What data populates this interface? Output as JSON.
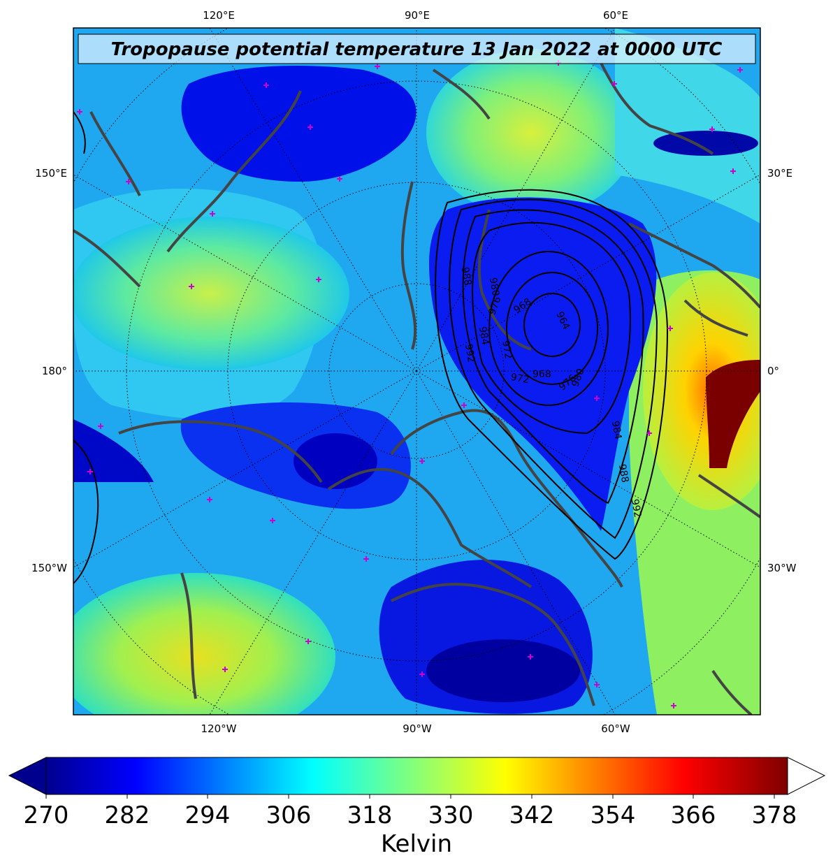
{
  "title": "Tropopause potential temperature 13 Jan 2022 at 0000 UTC",
  "top_longitude_labels": [
    "120°E",
    "90°E",
    "60°E"
  ],
  "bottom_longitude_labels": [
    "120°W",
    "90°W",
    "60°W"
  ],
  "left_labels": [
    "150°E",
    "180°",
    "150°W"
  ],
  "right_labels": [
    "30°E",
    "0°",
    "30°W"
  ],
  "isobar_labels": [
    "988",
    "980",
    "976",
    "984",
    "992",
    "972",
    "968",
    "964",
    "968",
    "972",
    "976",
    "980",
    "984",
    "988",
    "992"
  ],
  "colorbar": {
    "ticks": [
      "270",
      "282",
      "294",
      "306",
      "318",
      "330",
      "342",
      "354",
      "366",
      "378"
    ],
    "label": "Kelvin",
    "colormap": "jet",
    "extend": "both",
    "over_color": "#ffffff",
    "under_color": "#00008f"
  },
  "colors": {
    "coastline": "#444444",
    "station_marker": "#cc00cc",
    "isobar": "#000000"
  }
}
